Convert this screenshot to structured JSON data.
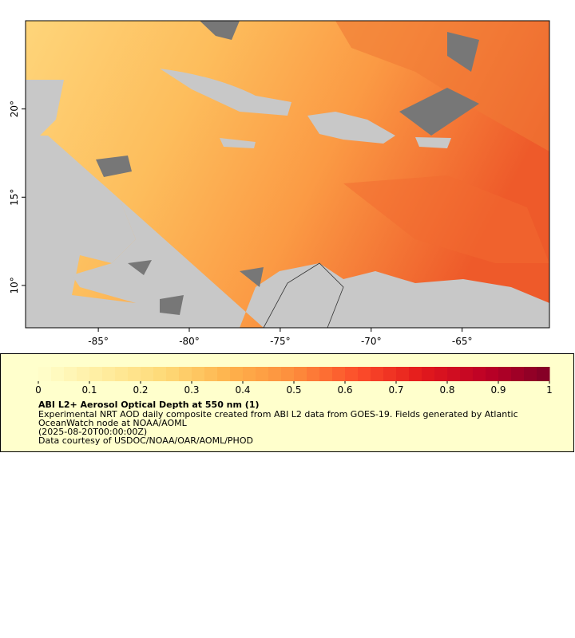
{
  "map": {
    "xlim": [
      -89,
      -60.2
    ],
    "ylim": [
      7.6,
      25
    ],
    "xticks": [
      {
        "value": -85,
        "label": "-85°"
      },
      {
        "value": -80,
        "label": "-80°"
      },
      {
        "value": -75,
        "label": "-75°"
      },
      {
        "value": -70,
        "label": "-70°"
      },
      {
        "value": -65,
        "label": "-65°"
      }
    ],
    "yticks": [
      {
        "value": 10,
        "label": "10°"
      },
      {
        "value": 15,
        "label": "15°"
      },
      {
        "value": 20,
        "label": "20°"
      }
    ]
  },
  "colorbar": {
    "lim": [
      0,
      1
    ],
    "ticks": [
      0,
      0.1,
      0.2,
      0.3,
      0.4,
      0.5,
      0.6,
      0.7,
      0.8,
      0.9,
      1
    ],
    "colors": [
      "#ffffcc",
      "#ffeda0",
      "#fed976",
      "#feb24c",
      "#fd8d3c",
      "#fc4e2a",
      "#e31a1c",
      "#bd0026",
      "#800026"
    ]
  },
  "legend": {
    "title": "ABI L2+ Aerosol Optical Depth at 550 nm (1)",
    "lines": [
      "Experimental NRT AOD daily composite created from ABI L2 data from GOES-19. Fields generated by Atlantic",
      "OceanWatch node at NOAA/AOML",
      "(2025-08-20T00:00:00Z)",
      "Data courtesy of USDOC/NOAA/OAR/AOML/PHOD"
    ]
  }
}
